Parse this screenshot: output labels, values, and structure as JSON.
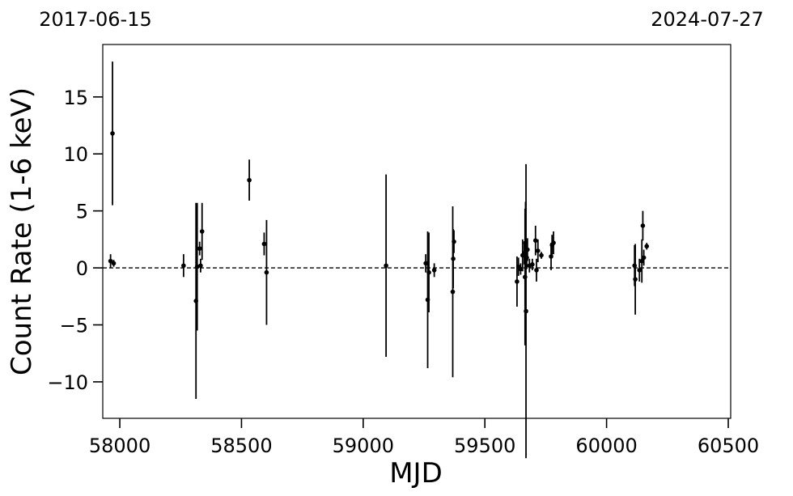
{
  "chart_data": {
    "type": "scatter",
    "xlabel": "MJD",
    "ylabel": "Count Rate (1-6 keV)",
    "xlim": [
      57930,
      60510
    ],
    "ylim": [
      -13.2,
      19.6
    ],
    "xticks": [
      58000,
      58500,
      59000,
      59500,
      60000,
      60500
    ],
    "xtick_labels": [
      "58000",
      "58500",
      "59000",
      "59500",
      "60000",
      "60500"
    ],
    "yticks": [
      -10,
      -5,
      0,
      5,
      10,
      15
    ],
    "ytick_labels": [
      "−10",
      "−5",
      "0",
      "5",
      "10",
      "15"
    ],
    "top_date_labels": {
      "left": "2017-06-15",
      "right": "2024-07-27"
    },
    "reference_line": {
      "y": 0,
      "style": "dashed"
    },
    "grid": false,
    "marker_color": "#000000",
    "points": [
      {
        "x": 57962,
        "y": 0.6,
        "err": 0.6
      },
      {
        "x": 57970,
        "y": 11.8,
        "err": 6.3
      },
      {
        "x": 57975,
        "y": 0.4,
        "err": 0.3
      },
      {
        "x": 58262,
        "y": 0.2,
        "err": 1.0
      },
      {
        "x": 58313,
        "y": -2.9,
        "err": 8.6
      },
      {
        "x": 58318,
        "y": 0.1,
        "err": 5.6
      },
      {
        "x": 58328,
        "y": 1.7,
        "err": 0.6
      },
      {
        "x": 58332,
        "y": 0.2,
        "err": 0.6
      },
      {
        "x": 58338,
        "y": 3.2,
        "err": 2.5
      },
      {
        "x": 58532,
        "y": 7.7,
        "err": 1.8
      },
      {
        "x": 58593,
        "y": 2.1,
        "err": 1.0
      },
      {
        "x": 58603,
        "y": -0.4,
        "err": 4.6
      },
      {
        "x": 59094,
        "y": 0.2,
        "err": 8.0
      },
      {
        "x": 59257,
        "y": 0.4,
        "err": 0.8
      },
      {
        "x": 59265,
        "y": -2.8,
        "err": 6.0
      },
      {
        "x": 59270,
        "y": -0.4,
        "err": 3.5
      },
      {
        "x": 59292,
        "y": -0.2,
        "err": 0.6
      },
      {
        "x": 59368,
        "y": -2.1,
        "err": 7.5
      },
      {
        "x": 59370,
        "y": 0.8,
        "err": 2.6
      },
      {
        "x": 59373,
        "y": 2.3,
        "err": 1.0
      },
      {
        "x": 59632,
        "y": -1.2,
        "err": 2.2
      },
      {
        "x": 59638,
        "y": 0.1,
        "err": 0.8
      },
      {
        "x": 59647,
        "y": -0.1,
        "err": 0.5
      },
      {
        "x": 59655,
        "y": 1.1,
        "err": 1.4
      },
      {
        "x": 59662,
        "y": 1.3,
        "err": 1.0
      },
      {
        "x": 59665,
        "y": -0.8,
        "err": 6.0
      },
      {
        "x": 59667,
        "y": 2.2,
        "err": 3.6
      },
      {
        "x": 59669,
        "y": -3.8,
        "err": 12.9
      },
      {
        "x": 59672,
        "y": 0.9,
        "err": 1.0
      },
      {
        "x": 59675,
        "y": 1.6,
        "err": 1.0
      },
      {
        "x": 59683,
        "y": 0.2,
        "err": 0.6
      },
      {
        "x": 59695,
        "y": 0.3,
        "err": 0.5
      },
      {
        "x": 59708,
        "y": 2.4,
        "err": 1.3
      },
      {
        "x": 59712,
        "y": -0.2,
        "err": 1.0
      },
      {
        "x": 59718,
        "y": 1.5,
        "err": 1.0
      },
      {
        "x": 59732,
        "y": 1.1,
        "err": 0.3
      },
      {
        "x": 59772,
        "y": 1.0,
        "err": 1.2
      },
      {
        "x": 59776,
        "y": 2.0,
        "err": 0.9
      },
      {
        "x": 59782,
        "y": 2.2,
        "err": 1.0
      },
      {
        "x": 60115,
        "y": 0.2,
        "err": 1.8
      },
      {
        "x": 60118,
        "y": -1.0,
        "err": 3.1
      },
      {
        "x": 60135,
        "y": -0.2,
        "err": 1.0
      },
      {
        "x": 60145,
        "y": 0.6,
        "err": 1.9
      },
      {
        "x": 60149,
        "y": 3.7,
        "err": 1.3
      },
      {
        "x": 60153,
        "y": 0.9,
        "err": 0.7
      },
      {
        "x": 60165,
        "y": 1.9,
        "err": 0.3
      }
    ]
  }
}
